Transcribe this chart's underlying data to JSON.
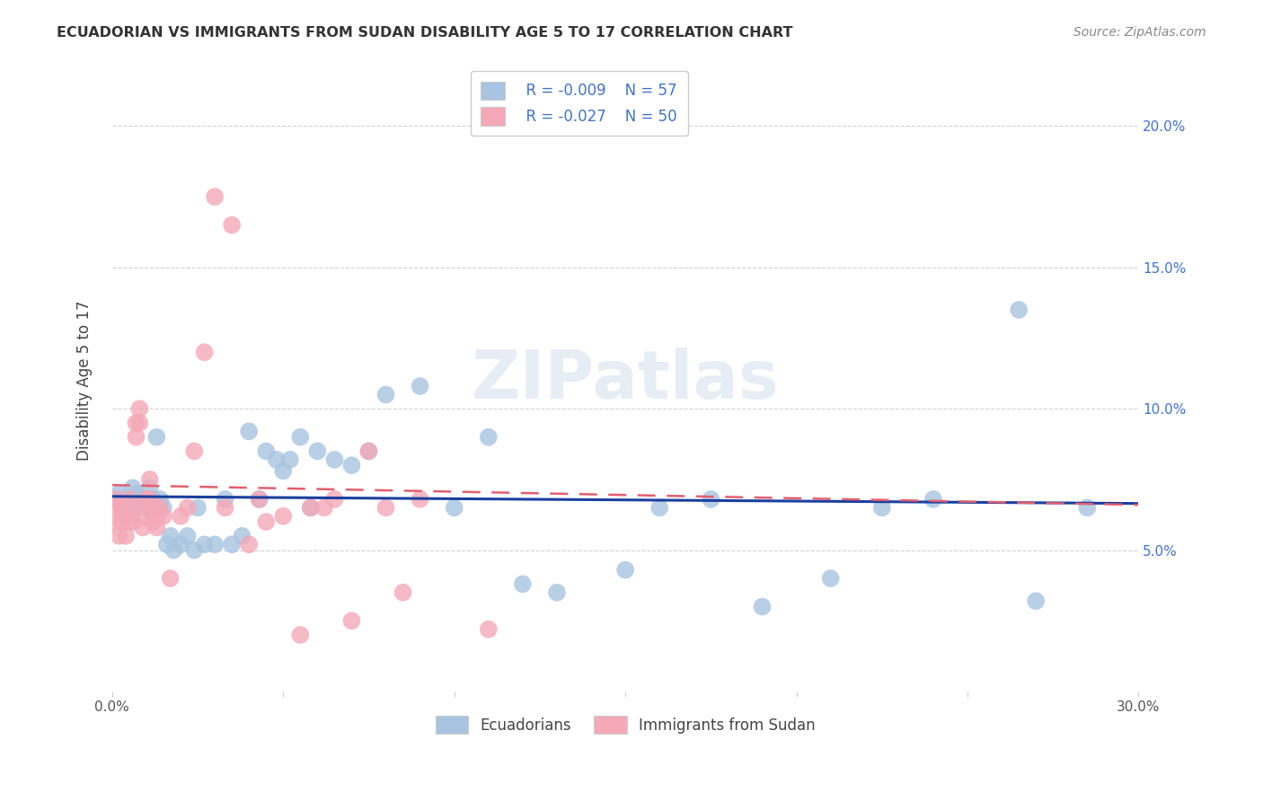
{
  "title": "ECUADORIAN VS IMMIGRANTS FROM SUDAN DISABILITY AGE 5 TO 17 CORRELATION CHART",
  "source": "Source: ZipAtlas.com",
  "ylabel": "Disability Age 5 to 17",
  "xlim": [
    0.0,
    0.3
  ],
  "ylim": [
    0.0,
    0.22
  ],
  "xticks": [
    0.0,
    0.05,
    0.1,
    0.15,
    0.2,
    0.25,
    0.3
  ],
  "xtick_labels": [
    "0.0%",
    "",
    "",
    "",
    "",
    "",
    "30.0%"
  ],
  "yticks": [
    0.05,
    0.1,
    0.15,
    0.2
  ],
  "right_ytick_labels": [
    "5.0%",
    "10.0%",
    "15.0%",
    "20.0%"
  ],
  "legend_r1": "R = -0.009",
  "legend_n1": "N = 57",
  "legend_r2": "R = -0.027",
  "legend_n2": "N = 50",
  "legend_label1": "Ecuadorians",
  "legend_label2": "Immigrants from Sudan",
  "color_blue": "#a8c4e0",
  "color_pink": "#f4a8b8",
  "trendline_blue": "#1a3f9e",
  "trendline_pink": "#e06070",
  "watermark": "ZIPatlas",
  "trendline_blue_y0": 0.069,
  "trendline_blue_y1": 0.0665,
  "trendline_pink_y0": 0.073,
  "trendline_pink_y1": 0.066,
  "scatter_blue_x": [
    0.001,
    0.002,
    0.003,
    0.004,
    0.005,
    0.006,
    0.007,
    0.007,
    0.008,
    0.009,
    0.01,
    0.01,
    0.011,
    0.012,
    0.013,
    0.014,
    0.015,
    0.016,
    0.017,
    0.018,
    0.02,
    0.022,
    0.024,
    0.025,
    0.027,
    0.03,
    0.033,
    0.035,
    0.038,
    0.04,
    0.043,
    0.045,
    0.048,
    0.05,
    0.052,
    0.055,
    0.058,
    0.06,
    0.065,
    0.07,
    0.075,
    0.08,
    0.09,
    0.1,
    0.11,
    0.12,
    0.13,
    0.15,
    0.16,
    0.175,
    0.19,
    0.21,
    0.225,
    0.24,
    0.265,
    0.27,
    0.285
  ],
  "scatter_blue_y": [
    0.068,
    0.07,
    0.065,
    0.068,
    0.063,
    0.072,
    0.065,
    0.07,
    0.068,
    0.067,
    0.065,
    0.068,
    0.072,
    0.068,
    0.09,
    0.068,
    0.065,
    0.052,
    0.055,
    0.05,
    0.052,
    0.055,
    0.05,
    0.065,
    0.052,
    0.052,
    0.068,
    0.052,
    0.055,
    0.092,
    0.068,
    0.085,
    0.082,
    0.078,
    0.082,
    0.09,
    0.065,
    0.085,
    0.082,
    0.08,
    0.085,
    0.105,
    0.108,
    0.065,
    0.09,
    0.038,
    0.035,
    0.043,
    0.065,
    0.068,
    0.03,
    0.04,
    0.065,
    0.068,
    0.135,
    0.032,
    0.065
  ],
  "scatter_pink_x": [
    0.001,
    0.001,
    0.002,
    0.002,
    0.003,
    0.003,
    0.004,
    0.004,
    0.005,
    0.005,
    0.006,
    0.006,
    0.007,
    0.007,
    0.008,
    0.008,
    0.009,
    0.009,
    0.01,
    0.01,
    0.011,
    0.011,
    0.012,
    0.012,
    0.013,
    0.013,
    0.014,
    0.015,
    0.017,
    0.02,
    0.022,
    0.024,
    0.027,
    0.03,
    0.033,
    0.035,
    0.04,
    0.043,
    0.045,
    0.05,
    0.055,
    0.058,
    0.062,
    0.065,
    0.07,
    0.075,
    0.08,
    0.085,
    0.09,
    0.11
  ],
  "scatter_pink_y": [
    0.068,
    0.06,
    0.065,
    0.055,
    0.065,
    0.06,
    0.063,
    0.055,
    0.068,
    0.06,
    0.065,
    0.06,
    0.095,
    0.09,
    0.1,
    0.095,
    0.062,
    0.058,
    0.068,
    0.065,
    0.075,
    0.068,
    0.065,
    0.06,
    0.062,
    0.058,
    0.065,
    0.062,
    0.04,
    0.062,
    0.065,
    0.085,
    0.12,
    0.175,
    0.065,
    0.165,
    0.052,
    0.068,
    0.06,
    0.062,
    0.02,
    0.065,
    0.065,
    0.068,
    0.025,
    0.085,
    0.065,
    0.035,
    0.068,
    0.022
  ]
}
